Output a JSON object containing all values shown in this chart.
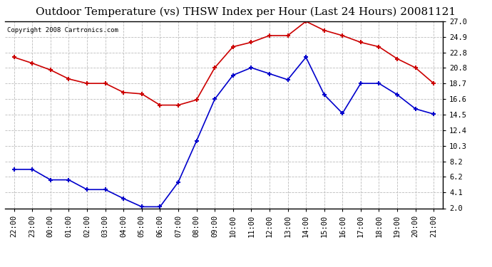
{
  "title": "Outdoor Temperature (vs) THSW Index per Hour (Last 24 Hours) 20081121",
  "copyright": "Copyright 2008 Cartronics.com",
  "x_labels": [
    "22:00",
    "23:00",
    "00:00",
    "01:00",
    "02:00",
    "03:00",
    "04:00",
    "05:00",
    "06:00",
    "07:00",
    "08:00",
    "09:00",
    "10:00",
    "11:00",
    "12:00",
    "13:00",
    "14:00",
    "15:00",
    "16:00",
    "17:00",
    "18:00",
    "19:00",
    "20:00",
    "21:00"
  ],
  "red_data": [
    22.2,
    21.4,
    20.5,
    19.3,
    18.7,
    18.7,
    17.5,
    17.3,
    15.8,
    15.8,
    16.5,
    20.8,
    23.6,
    24.2,
    25.1,
    25.1,
    27.0,
    25.8,
    25.1,
    24.2,
    23.6,
    22.0,
    20.8,
    18.7
  ],
  "blue_data": [
    7.2,
    7.2,
    5.8,
    5.8,
    4.5,
    4.5,
    3.3,
    2.2,
    2.2,
    5.5,
    11.0,
    16.6,
    19.8,
    20.8,
    20.0,
    19.2,
    22.2,
    17.2,
    14.7,
    18.7,
    18.7,
    17.2,
    15.3,
    14.6
  ],
  "y_ticks": [
    2.0,
    4.1,
    6.2,
    8.2,
    10.3,
    12.4,
    14.5,
    16.6,
    18.7,
    20.8,
    22.8,
    24.9,
    27.0
  ],
  "ymin": 2.0,
  "ymax": 27.0,
  "red_color": "#cc0000",
  "blue_color": "#0000cc",
  "bg_color": "#ffffff",
  "grid_color": "#bbbbbb",
  "title_fontsize": 11,
  "copyright_fontsize": 6.5,
  "tick_fontsize": 7.5,
  "ytick_fontsize": 7.5
}
